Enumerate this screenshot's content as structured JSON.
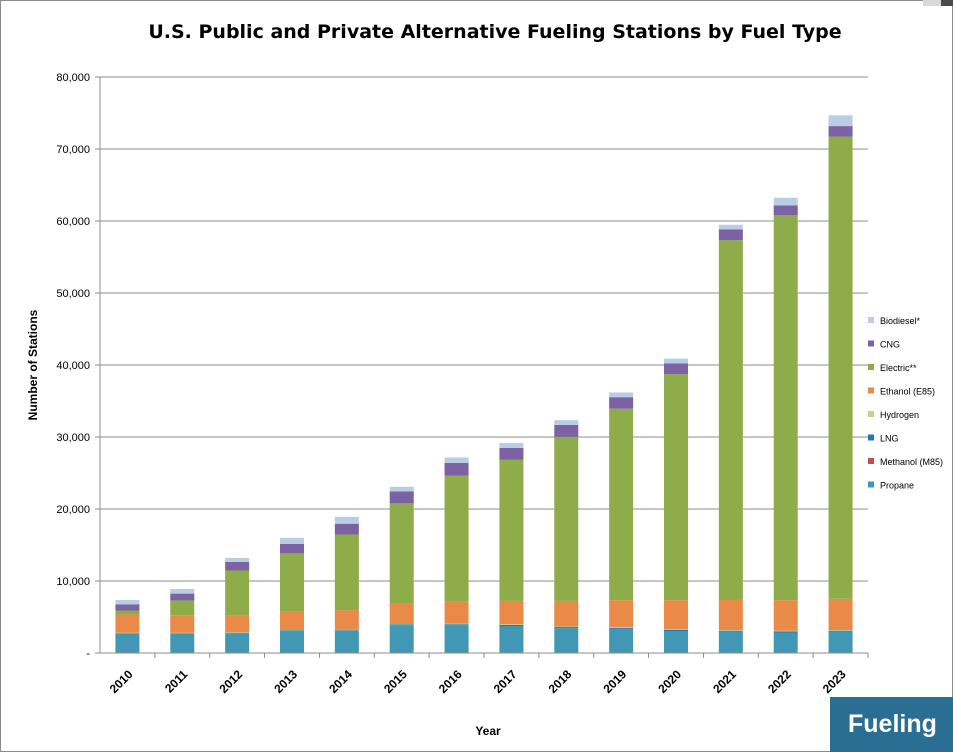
{
  "chart_data": {
    "type": "bar",
    "stacked": true,
    "title": "U.S. Public and Private Alternative Fueling Stations by Fuel Type",
    "xlabel": "Year",
    "ylabel": "Number of Stations",
    "ylim": [
      0,
      80000
    ],
    "yticks": [
      0,
      10000,
      20000,
      30000,
      40000,
      50000,
      60000,
      70000,
      80000
    ],
    "ytick_labels": [
      "-",
      "10,000",
      "20,000",
      "30,000",
      "40,000",
      "50,000",
      "60,000",
      "70,000",
      "80,000"
    ],
    "grid": true,
    "legend_position": "right",
    "categories": [
      "2010",
      "2011",
      "2012",
      "2013",
      "2014",
      "2015",
      "2016",
      "2017",
      "2018",
      "2019",
      "2020",
      "2021",
      "2022",
      "2023"
    ],
    "series": [
      {
        "name": "Propane",
        "color": "#4297b5",
        "values": [
          2700,
          2700,
          2750,
          3050,
          3050,
          3850,
          3850,
          3750,
          3450,
          3350,
          3050,
          2950,
          2850,
          2950
        ]
      },
      {
        "name": "Methanol (M85)",
        "color": "#c0504d",
        "values": [
          0,
          0,
          0,
          0,
          0,
          0,
          0,
          0,
          0,
          0,
          0,
          0,
          0,
          0
        ]
      },
      {
        "name": "LNG",
        "color": "#1f78b4",
        "values": [
          50,
          50,
          60,
          80,
          100,
          120,
          140,
          150,
          150,
          150,
          150,
          150,
          150,
          150
        ]
      },
      {
        "name": "Hydrogen",
        "color": "#b8d88c",
        "values": [
          50,
          50,
          50,
          60,
          60,
          60,
          70,
          80,
          80,
          80,
          80,
          80,
          80,
          80
        ]
      },
      {
        "name": "Ethanol (E85)",
        "color": "#e98a48",
        "values": [
          2550,
          2450,
          2400,
          2550,
          2750,
          2850,
          3050,
          3250,
          3550,
          3750,
          4050,
          4250,
          4250,
          4350
        ]
      },
      {
        "name": "Electric**",
        "color": "#8ead4a",
        "values": [
          550,
          2050,
          6200,
          8100,
          10500,
          13900,
          17500,
          19600,
          22800,
          26600,
          31400,
          49900,
          53500,
          64200
        ]
      },
      {
        "name": "CNG",
        "color": "#7c62a2",
        "values": [
          850,
          950,
          1200,
          1300,
          1500,
          1650,
          1800,
          1650,
          1650,
          1600,
          1500,
          1500,
          1350,
          1450
        ]
      },
      {
        "name": "Biodiesel*",
        "color": "#b9cde4",
        "values": [
          600,
          650,
          550,
          850,
          950,
          650,
          750,
          700,
          650,
          650,
          650,
          650,
          1050,
          1500
        ]
      }
    ],
    "legend_order": [
      "Biodiesel*",
      "CNG",
      "Electric**",
      "Ethanol (E85)",
      "Hydrogen",
      "LNG",
      "Methanol (M85)",
      "Propane"
    ]
  },
  "overlay": {
    "badge_text": "Fueling"
  },
  "colors": {
    "badge_background": "#2a6f93",
    "gridline": "#8c8c8c"
  }
}
